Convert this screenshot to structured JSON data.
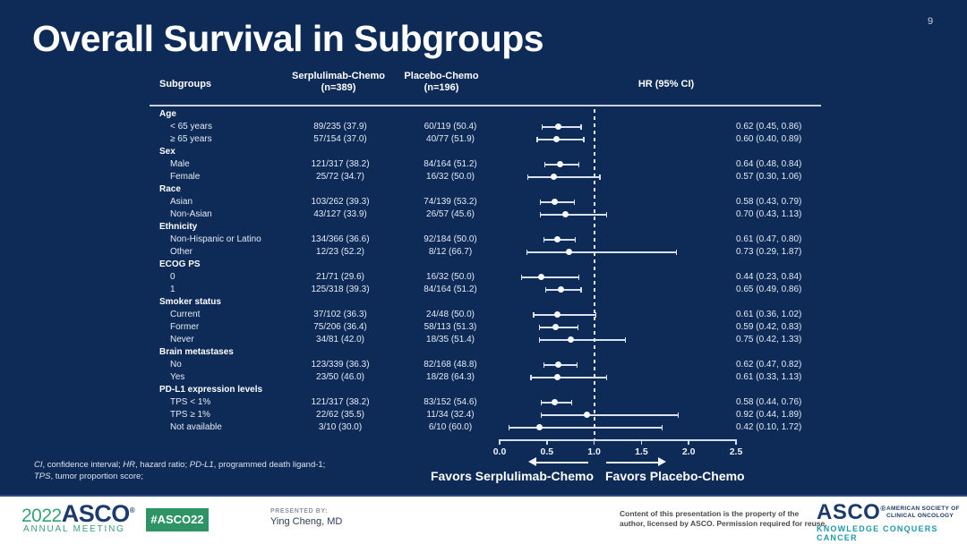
{
  "slide": {
    "page_number": "9",
    "title": "Overall Survival in Subgroups"
  },
  "table_header": {
    "subgroups": "Subgroups",
    "arm1_line1": "Serplulimab-Chemo",
    "arm1_line2": "(n=389)",
    "arm2_line1": "Placebo-Chemo",
    "arm2_line2": "(n=196)",
    "hr": "HR (95% CI)"
  },
  "chart_data": {
    "type": "scatter",
    "subtype": "forest-plot",
    "title": "Overall Survival in Subgroups",
    "xlabel": "HR (95% CI)",
    "xlim": [
      0,
      2.5
    ],
    "xticks": [
      0,
      0.5,
      1.0,
      1.5,
      2.0,
      2.5
    ],
    "xtick_labels": [
      "0.0",
      "0.5",
      "1.0",
      "1.5",
      "2.0",
      "2.5"
    ],
    "reference_line_x": 1.0,
    "grid": false,
    "favors_left": "Favors Serplulimab-Chemo",
    "favors_right": "Favors Placebo-Chemo",
    "columns": [
      "Subgroups",
      "Serplulimab-Chemo (n=389)",
      "Placebo-Chemo (n=196)",
      "HR (95% CI)"
    ],
    "rows": [
      {
        "kind": "group",
        "label": "Age"
      },
      {
        "kind": "item",
        "label": "< 65 years",
        "arm1": "89/235 (37.9)",
        "arm2": "60/119 (50.4)",
        "hr": 0.62,
        "lo": 0.45,
        "hi": 0.86,
        "hr_text": "0.62 (0.45, 0.86)"
      },
      {
        "kind": "item",
        "label": "≥ 65 years",
        "arm1": "57/154 (37.0)",
        "arm2": "40/77 (51.9)",
        "hr": 0.6,
        "lo": 0.4,
        "hi": 0.89,
        "hr_text": "0.60 (0.40, 0.89)"
      },
      {
        "kind": "group",
        "label": "Sex"
      },
      {
        "kind": "item",
        "label": "Male",
        "arm1": "121/317 (38.2)",
        "arm2": "84/164 (51.2)",
        "hr": 0.64,
        "lo": 0.48,
        "hi": 0.84,
        "hr_text": "0.64 (0.48, 0.84)"
      },
      {
        "kind": "item",
        "label": "Female",
        "arm1": "25/72 (34.7)",
        "arm2": "16/32 (50.0)",
        "hr": 0.57,
        "lo": 0.3,
        "hi": 1.06,
        "hr_text": "0.57 (0.30, 1.06)"
      },
      {
        "kind": "group",
        "label": "Race"
      },
      {
        "kind": "item",
        "label": "Asian",
        "arm1": "103/262 (39.3)",
        "arm2": "74/139 (53.2)",
        "hr": 0.58,
        "lo": 0.43,
        "hi": 0.79,
        "hr_text": "0.58 (0.43, 0.79)"
      },
      {
        "kind": "item",
        "label": "Non-Asian",
        "arm1": "43/127 (33.9)",
        "arm2": "26/57 (45.6)",
        "hr": 0.7,
        "lo": 0.43,
        "hi": 1.13,
        "hr_text": "0.70 (0.43, 1.13)"
      },
      {
        "kind": "group",
        "label": "Ethnicity"
      },
      {
        "kind": "item",
        "label": "Non-Hispanic or Latino",
        "arm1": "134/366 (36.6)",
        "arm2": "92/184 (50.0)",
        "hr": 0.61,
        "lo": 0.47,
        "hi": 0.8,
        "hr_text": "0.61 (0.47, 0.80)"
      },
      {
        "kind": "item",
        "label": "Other",
        "arm1": "12/23 (52.2)",
        "arm2": "8/12 (66.7)",
        "hr": 0.73,
        "lo": 0.29,
        "hi": 1.87,
        "hr_text": "0.73 (0.29, 1.87)"
      },
      {
        "kind": "group",
        "label": "ECOG PS"
      },
      {
        "kind": "item",
        "label": "0",
        "arm1": "21/71 (29.6)",
        "arm2": "16/32 (50.0)",
        "hr": 0.44,
        "lo": 0.23,
        "hi": 0.84,
        "hr_text": "0.44 (0.23, 0.84)"
      },
      {
        "kind": "item",
        "label": "1",
        "arm1": "125/318 (39.3)",
        "arm2": "84/164 (51.2)",
        "hr": 0.65,
        "lo": 0.49,
        "hi": 0.86,
        "hr_text": "0.65 (0.49, 0.86)"
      },
      {
        "kind": "group",
        "label": "Smoker status"
      },
      {
        "kind": "item",
        "label": "Current",
        "arm1": "37/102 (36.3)",
        "arm2": "24/48 (50.0)",
        "hr": 0.61,
        "lo": 0.36,
        "hi": 1.02,
        "hr_text": "0.61 (0.36, 1.02)"
      },
      {
        "kind": "item",
        "label": "Former",
        "arm1": "75/206 (36.4)",
        "arm2": "58/113 (51.3)",
        "hr": 0.59,
        "lo": 0.42,
        "hi": 0.83,
        "hr_text": "0.59 (0.42, 0.83)"
      },
      {
        "kind": "item",
        "label": "Never",
        "arm1": "34/81 (42.0)",
        "arm2": "18/35 (51.4)",
        "hr": 0.75,
        "lo": 0.42,
        "hi": 1.33,
        "hr_text": "0.75 (0.42, 1.33)"
      },
      {
        "kind": "group",
        "label": "Brain metastases"
      },
      {
        "kind": "item",
        "label": "No",
        "arm1": "123/339 (36.3)",
        "arm2": "82/168 (48.8)",
        "hr": 0.62,
        "lo": 0.47,
        "hi": 0.82,
        "hr_text": "0.62 (0.47, 0.82)"
      },
      {
        "kind": "item",
        "label": "Yes",
        "arm1": "23/50 (46.0)",
        "arm2": "18/28 (64.3)",
        "hr": 0.61,
        "lo": 0.33,
        "hi": 1.13,
        "hr_text": "0.61 (0.33, 1.13)"
      },
      {
        "kind": "group",
        "label": "PD-L1 expression levels"
      },
      {
        "kind": "item",
        "label": "TPS < 1%",
        "arm1": "121/317 (38.2)",
        "arm2": "83/152 (54.6)",
        "hr": 0.58,
        "lo": 0.44,
        "hi": 0.76,
        "hr_text": "0.58 (0.44, 0.76)"
      },
      {
        "kind": "item",
        "label": "TPS ≥ 1%",
        "arm1": "22/62 (35.5)",
        "arm2": "11/34 (32.4)",
        "hr": 0.92,
        "lo": 0.44,
        "hi": 1.89,
        "hr_text": "0.92 (0.44, 1.89)"
      },
      {
        "kind": "item",
        "label": "Not available",
        "arm1": "3/10 (30.0)",
        "arm2": "6/10 (60.0)",
        "hr": 0.42,
        "lo": 0.1,
        "hi": 1.72,
        "hr_text": "0.42 (0.10, 1.72)"
      }
    ]
  },
  "footnote": {
    "line1": "CI, confidence interval; HR, hazard ratio; PD-L1, programmed death ligand-1;",
    "line2": "TPS, tumor proportion score;",
    "italic_terms": [
      "CI",
      "HR",
      "PD-L1",
      "TPS"
    ]
  },
  "colors": {
    "slide_bg": "#0e2b58",
    "accent_green": "#2e9465",
    "logo_navy": "#1c3a6b",
    "tagline_teal": "#1f98a9"
  },
  "footer": {
    "logo_year": "2022",
    "logo_asco": "ASCO",
    "logo_meeting": "ANNUAL MEETING",
    "hashtag": "#ASCO22",
    "presented_by_label": "PRESENTED BY:",
    "presenter": "Ying Cheng, MD",
    "disclaimer_line1": "Content of this presentation is the property of the",
    "disclaimer_line2": "author, licensed by ASCO. Permission required for reuse.",
    "asco_logo": "ASCO",
    "asco_society_line1": "AMERICAN SOCIETY OF",
    "asco_society_line2": "CLINICAL ONCOLOGY",
    "asco_tagline": "KNOWLEDGE CONQUERS CANCER"
  }
}
